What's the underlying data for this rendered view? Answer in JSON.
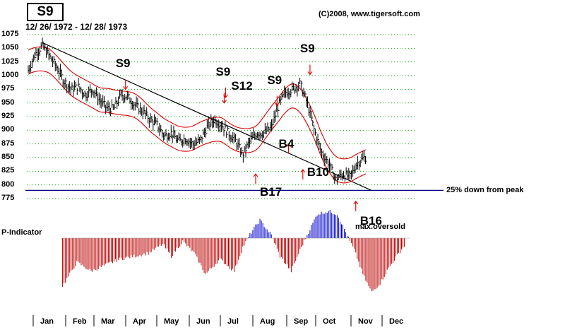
{
  "chart_data": {
    "type": "line",
    "title": "S9",
    "subtitle": "12/ 26/ 1972 - 12/ 28/ 1973",
    "source": "(C)2008, www.tigersoft.com",
    "y_axis": {
      "ticks": [
        1075,
        1050,
        1025,
        1000,
        975,
        950,
        925,
        900,
        875,
        850,
        825,
        800,
        775
      ],
      "range": [
        775,
        1075
      ]
    },
    "x_axis": {
      "months": [
        "Jan",
        "Feb",
        "Mar",
        "Apr",
        "May",
        "Jun",
        "Jul",
        "Aug",
        "Sep",
        "Oct",
        "Nov",
        "Dec"
      ]
    },
    "price_series": [
      {
        "x": 0.0,
        "y": 1010
      },
      {
        "x": 0.25,
        "y": 1040
      },
      {
        "x": 0.5,
        "y": 1055
      },
      {
        "x": 0.75,
        "y": 1035
      },
      {
        "x": 1.0,
        "y": 1015
      },
      {
        "x": 1.25,
        "y": 990
      },
      {
        "x": 1.5,
        "y": 975
      },
      {
        "x": 1.75,
        "y": 980
      },
      {
        "x": 2.0,
        "y": 965
      },
      {
        "x": 2.25,
        "y": 975
      },
      {
        "x": 2.5,
        "y": 955
      },
      {
        "x": 2.75,
        "y": 940
      },
      {
        "x": 3.0,
        "y": 940
      },
      {
        "x": 3.25,
        "y": 965
      },
      {
        "x": 3.5,
        "y": 960
      },
      {
        "x": 3.75,
        "y": 945
      },
      {
        "x": 4.0,
        "y": 935
      },
      {
        "x": 4.25,
        "y": 920
      },
      {
        "x": 4.5,
        "y": 910
      },
      {
        "x": 4.75,
        "y": 890
      },
      {
        "x": 5.0,
        "y": 895
      },
      {
        "x": 5.25,
        "y": 880
      },
      {
        "x": 5.5,
        "y": 885
      },
      {
        "x": 5.75,
        "y": 875
      },
      {
        "x": 6.0,
        "y": 880
      },
      {
        "x": 6.25,
        "y": 905
      },
      {
        "x": 6.5,
        "y": 920
      },
      {
        "x": 6.75,
        "y": 910
      },
      {
        "x": 7.0,
        "y": 895
      },
      {
        "x": 7.25,
        "y": 880
      },
      {
        "x": 7.5,
        "y": 855
      },
      {
        "x": 7.75,
        "y": 880
      },
      {
        "x": 8.0,
        "y": 895
      },
      {
        "x": 8.25,
        "y": 895
      },
      {
        "x": 8.5,
        "y": 905
      },
      {
        "x": 8.75,
        "y": 945
      },
      {
        "x": 9.0,
        "y": 970
      },
      {
        "x": 9.25,
        "y": 975
      },
      {
        "x": 9.5,
        "y": 985
      },
      {
        "x": 9.75,
        "y": 950
      },
      {
        "x": 10.0,
        "y": 900
      },
      {
        "x": 10.25,
        "y": 860
      },
      {
        "x": 10.5,
        "y": 840
      },
      {
        "x": 10.75,
        "y": 810
      },
      {
        "x": 11.0,
        "y": 820
      },
      {
        "x": 11.25,
        "y": 815
      },
      {
        "x": 11.5,
        "y": 840
      },
      {
        "x": 11.75,
        "y": 850
      }
    ],
    "horizontal_line": {
      "y": 790,
      "label": "25% down from peak"
    },
    "trendline": {
      "from": {
        "x": 0.5,
        "y": 1060
      },
      "to": {
        "x": 12.0,
        "y": 790
      }
    },
    "signals": [
      {
        "label": "S9",
        "x": 3.4,
        "y": 975,
        "type": "sell"
      },
      {
        "label": "S9",
        "x": 6.9,
        "y": 960,
        "type": "sell"
      },
      {
        "label": "S12",
        "x": 6.85,
        "y": 950,
        "type": "sell"
      },
      {
        "label": "S9",
        "x": 8.7,
        "y": 945,
        "type": "sell"
      },
      {
        "label": "S9",
        "x": 9.85,
        "y": 1002,
        "type": "sell"
      },
      {
        "label": "B17",
        "x": 7.95,
        "y": 820,
        "type": "buy"
      },
      {
        "label": "B4",
        "x": 9.1,
        "y": 875,
        "type": "buy"
      },
      {
        "label": "B10",
        "x": 9.6,
        "y": 828,
        "type": "buy"
      },
      {
        "label": "B16",
        "x": 11.45,
        "y": 770,
        "type": "buy"
      }
    ],
    "annotations": [
      "max.oversold",
      "P-Indicator"
    ],
    "colors": {
      "price": "#000000",
      "bands": "#dd0000",
      "grid": "#00aa00",
      "baseline": "#000080",
      "indicator_positive": "#0000cc",
      "indicator_negative": "#bb0000"
    },
    "indicator": {
      "name": "P-Indicator",
      "points": [
        {
          "x": 0.0,
          "v": -80
        },
        {
          "x": 0.5,
          "v": -40
        },
        {
          "x": 1.0,
          "v": -55
        },
        {
          "x": 1.5,
          "v": -45
        },
        {
          "x": 2.0,
          "v": -35
        },
        {
          "x": 2.5,
          "v": -30
        },
        {
          "x": 3.0,
          "v": -25
        },
        {
          "x": 3.5,
          "v": -10
        },
        {
          "x": 3.8,
          "v": -30
        },
        {
          "x": 4.2,
          "v": -5
        },
        {
          "x": 4.6,
          "v": -25
        },
        {
          "x": 5.0,
          "v": -60
        },
        {
          "x": 5.5,
          "v": -35
        },
        {
          "x": 6.0,
          "v": -55
        },
        {
          "x": 6.3,
          "v": -15
        },
        {
          "x": 6.6,
          "v": 10
        },
        {
          "x": 6.9,
          "v": 30
        },
        {
          "x": 7.3,
          "v": 5
        },
        {
          "x": 7.6,
          "v": -30
        },
        {
          "x": 8.0,
          "v": -55
        },
        {
          "x": 8.3,
          "v": -20
        },
        {
          "x": 8.6,
          "v": 10
        },
        {
          "x": 8.9,
          "v": 40
        },
        {
          "x": 9.3,
          "v": 45
        },
        {
          "x": 9.6,
          "v": 40
        },
        {
          "x": 9.9,
          "v": 10
        },
        {
          "x": 10.2,
          "v": -20
        },
        {
          "x": 10.5,
          "v": -60
        },
        {
          "x": 10.8,
          "v": -90
        },
        {
          "x": 11.1,
          "v": -75
        },
        {
          "x": 11.4,
          "v": -50
        },
        {
          "x": 11.9,
          "v": -15
        }
      ]
    }
  }
}
